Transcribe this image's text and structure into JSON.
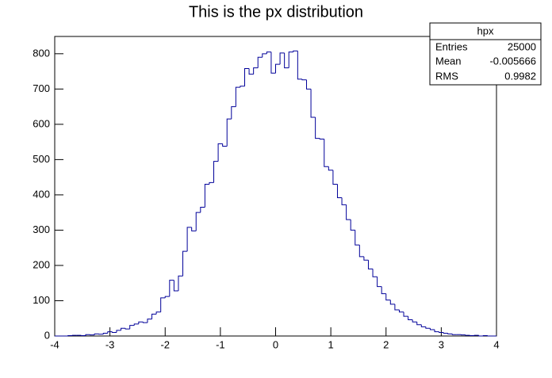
{
  "chart_data": {
    "type": "histogram",
    "title": "This is the px distribution",
    "bins": [
      -4,
      -3.92,
      -3.84,
      -3.76,
      -3.68,
      -3.6,
      -3.52,
      -3.44,
      -3.36,
      -3.28,
      -3.2,
      -3.12,
      -3.04,
      -2.96,
      -2.88,
      -2.8,
      -2.72,
      -2.64,
      -2.56,
      -2.48,
      -2.4,
      -2.32,
      -2.24,
      -2.16,
      -2.08,
      -2,
      -1.92,
      -1.84,
      -1.76,
      -1.68,
      -1.6,
      -1.52,
      -1.44,
      -1.36,
      -1.28,
      -1.2,
      -1.12,
      -1.04,
      -0.96,
      -0.88,
      -0.8,
      -0.72,
      -0.64,
      -0.56,
      -0.48,
      -0.4,
      -0.32,
      -0.24,
      -0.16,
      -0.08,
      0,
      0.08,
      0.16,
      0.24,
      0.32,
      0.4,
      0.48,
      0.56,
      0.64,
      0.72,
      0.8,
      0.88,
      0.96,
      1.04,
      1.12,
      1.2,
      1.28,
      1.36,
      1.44,
      1.52,
      1.6,
      1.68,
      1.76,
      1.84,
      1.92,
      2,
      2.08,
      2.16,
      2.24,
      2.32,
      2.4,
      2.48,
      2.56,
      2.64,
      2.72,
      2.8,
      2.88,
      2.96,
      3.04,
      3.12,
      3.2,
      3.28,
      3.36,
      3.44,
      3.52,
      3.6,
      3.68,
      3.76,
      3.84,
      3.92,
      4
    ],
    "values": [
      0,
      0,
      0,
      1,
      2,
      2,
      1,
      4,
      3,
      6,
      5,
      8,
      12,
      10,
      16,
      22,
      20,
      30,
      34,
      40,
      38,
      48,
      62,
      68,
      108,
      112,
      158,
      128,
      170,
      240,
      308,
      298,
      350,
      365,
      430,
      435,
      495,
      545,
      538,
      615,
      650,
      705,
      708,
      758,
      742,
      760,
      790,
      800,
      805,
      745,
      770,
      802,
      760,
      805,
      808,
      728,
      726,
      700,
      620,
      560,
      558,
      480,
      470,
      430,
      392,
      372,
      330,
      300,
      258,
      225,
      215,
      190,
      168,
      140,
      120,
      102,
      90,
      74,
      68,
      56,
      46,
      40,
      32,
      26,
      22,
      18,
      12,
      10,
      8,
      6,
      4,
      4,
      3,
      2,
      1,
      2,
      0,
      1,
      0,
      0
    ],
    "color": "#000099",
    "xlim": [
      -4,
      4
    ],
    "xticks": [
      -4,
      -3,
      -2,
      -1,
      0,
      1,
      2,
      3,
      4
    ],
    "ylim": [
      0,
      849
    ],
    "yticks": [
      0,
      100,
      200,
      300,
      400,
      500,
      600,
      700,
      800
    ],
    "stats": {
      "title": "hpx",
      "rows": [
        [
          "Entries",
          25000
        ],
        [
          "Mean",
          -0.005666
        ],
        [
          "RMS",
          0.9982
        ]
      ]
    }
  }
}
